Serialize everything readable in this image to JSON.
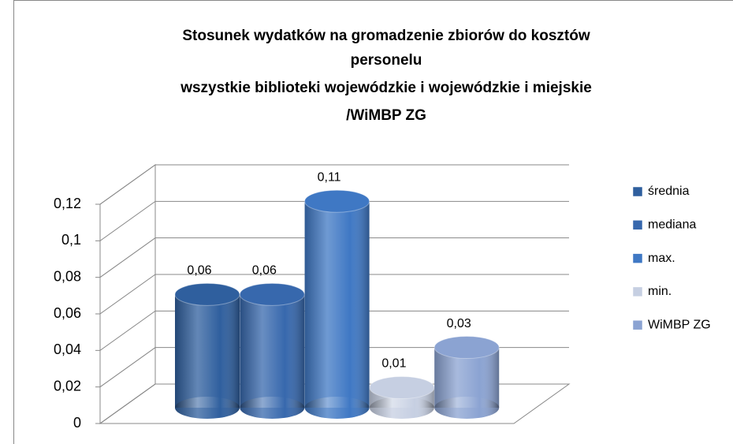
{
  "chart_data": {
    "type": "bar3d",
    "title": [
      "Stosunek wydatków na gromadzenie  zbiorów do kosztów",
      "personelu",
      "wszystkie biblioteki wojewódzkie i wojewódzkie i miejskie",
      "/WiMBP ZG"
    ],
    "series": [
      {
        "name": "średnia",
        "color": "#2f5f9e",
        "values": [
          0.062
        ],
        "value_labels": [
          "0,06"
        ]
      },
      {
        "name": "mediana",
        "color": "#3768ad",
        "values": [
          0.062
        ],
        "value_labels": [
          "0,06"
        ]
      },
      {
        "name": "max.",
        "color": "#3f78c4",
        "values": [
          0.113
        ],
        "value_labels": [
          "0,11"
        ]
      },
      {
        "name": "min.",
        "color": "#c6cfe2",
        "values": [
          0.011
        ],
        "value_labels": [
          "0,01"
        ]
      },
      {
        "name": "WiMBP ZG",
        "color": "#8ba3d2",
        "values": [
          0.033
        ],
        "value_labels": [
          "0,03"
        ]
      }
    ],
    "ylim": [
      0,
      0.12
    ],
    "yticks": [
      0,
      {
        "value": 0.02,
        "label": "0,02"
      },
      {
        "value": 0.04,
        "label": "0,04"
      },
      {
        "value": 0.06,
        "label": "0,06"
      },
      {
        "value": 0.08,
        "label": "0,08"
      },
      {
        "value": 0.1,
        "label": "0,1"
      },
      {
        "value": 0.12,
        "label": "0,12"
      }
    ],
    "grid": true,
    "legend": "right"
  }
}
